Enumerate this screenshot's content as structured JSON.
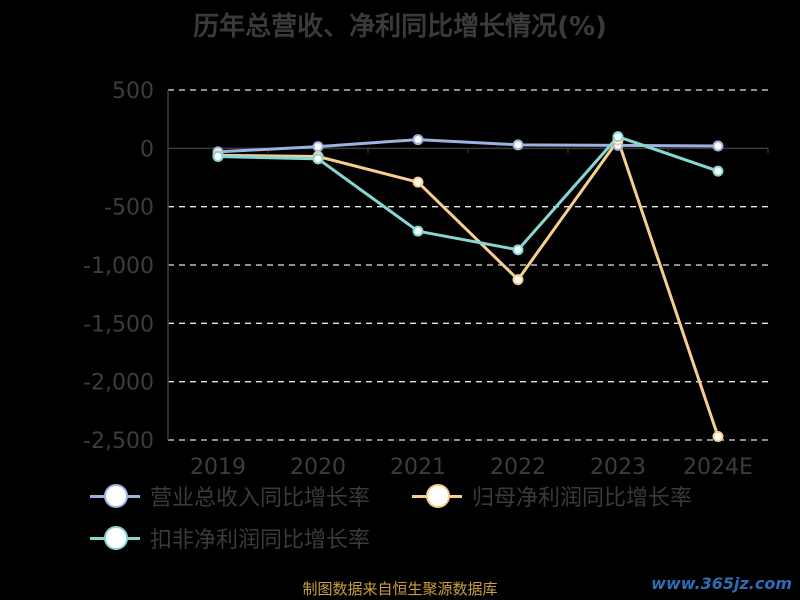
{
  "chart_data": {
    "type": "line",
    "title": "历年总营收、净利同比增长情况(%)",
    "categories": [
      "2019",
      "2020",
      "2021",
      "2022",
      "2023",
      "2024E"
    ],
    "ylim": [
      -2500,
      500
    ],
    "yticks": [
      500,
      0,
      -500,
      -1000,
      -1500,
      -2000,
      -2500
    ],
    "ytick_labels": [
      "500",
      "0",
      "-500",
      "-1,000",
      "-1,500",
      "-2,000",
      "-2,500"
    ],
    "grid": true,
    "legend_position": "bottom",
    "series": [
      {
        "name": "营业总收入同比增长率",
        "color": "#9db3df",
        "values": [
          -30,
          15,
          75,
          30,
          25,
          20
        ]
      },
      {
        "name": "归母净利润同比增长率",
        "color": "#f6cf8e",
        "values": [
          -60,
          -70,
          -290,
          -1125,
          70,
          -2470
        ]
      },
      {
        "name": "扣非净利润同比增长率",
        "color": "#86d6d4",
        "values": [
          -70,
          -90,
          -710,
          -870,
          100,
          -195
        ]
      }
    ]
  },
  "source_text": "制图数据来自恒生聚源数据库",
  "watermark_text": "www.365jz.com"
}
